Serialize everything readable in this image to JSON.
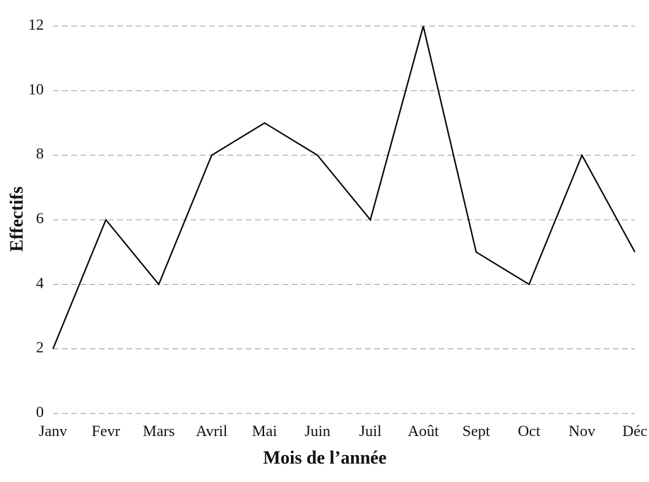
{
  "chart_data": {
    "type": "line",
    "x_label": "Mois de l’année",
    "y_label": "Effectifs",
    "categories": [
      "Janv",
      "Fevr",
      "Mars",
      "Avril",
      "Mai",
      "Juin",
      "Juil",
      "Août",
      "Sept",
      "Oct",
      "Nov",
      "Déc"
    ],
    "values": [
      2,
      6,
      4,
      8,
      9,
      8,
      6,
      12,
      5,
      4,
      8,
      5
    ],
    "color": "#000000",
    "ylim": [
      0,
      12
    ],
    "yticks": [
      0,
      2,
      4,
      6,
      8,
      10,
      12
    ],
    "grid": true
  }
}
